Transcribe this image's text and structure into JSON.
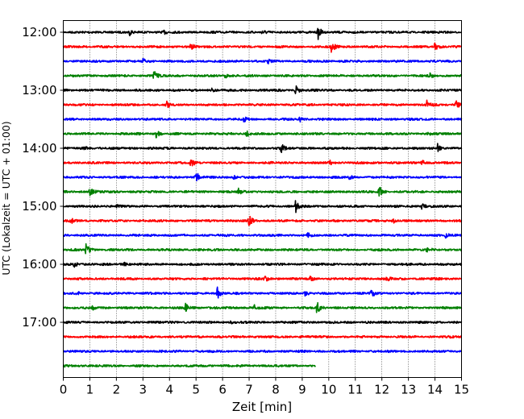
{
  "chart_data": {
    "type": "line",
    "subtype": "helicorder-seismogram",
    "xlabel": "Zeit  [min]",
    "ylabel": "UTC (Lokalzeit = UTC + 01:00)",
    "xlim": [
      0,
      15
    ],
    "x_ticks": [
      "0",
      "1",
      "2",
      "3",
      "4",
      "5",
      "6",
      "7",
      "8",
      "9",
      "10",
      "11",
      "12",
      "13",
      "14",
      "15"
    ],
    "y_ticks": [
      "12:00",
      "13:00",
      "14:00",
      "15:00",
      "16:00",
      "17:00"
    ],
    "grid": "vertical-dotted",
    "minutes_per_trace": 15,
    "trace_colors": [
      "#000000",
      "#ff0000",
      "#0000ff",
      "#008000"
    ],
    "traces": [
      {
        "start": "12:00",
        "end_min": 15,
        "color": "#000000",
        "events": [
          [
            2.5,
            0.35
          ],
          [
            9.6,
            0.9
          ],
          [
            7.5,
            0.3
          ],
          [
            3.8,
            0.25
          ]
        ]
      },
      {
        "start": "12:15",
        "end_min": 15,
        "color": "#ff0000",
        "events": [
          [
            10.1,
            1.0
          ],
          [
            14.0,
            0.9
          ],
          [
            4.8,
            0.4
          ]
        ]
      },
      {
        "start": "12:30",
        "end_min": 15,
        "color": "#0000ff",
        "events": [
          [
            3.0,
            0.35
          ],
          [
            7.7,
            0.3
          ]
        ]
      },
      {
        "start": "12:45",
        "end_min": 15,
        "color": "#008000",
        "events": [
          [
            3.4,
            0.75
          ],
          [
            6.1,
            0.3
          ],
          [
            13.8,
            0.3
          ]
        ]
      },
      {
        "start": "13:00",
        "end_min": 15,
        "color": "#000000",
        "events": [
          [
            8.75,
            0.85
          ],
          [
            5.6,
            0.3
          ]
        ]
      },
      {
        "start": "13:15",
        "end_min": 15,
        "color": "#ff0000",
        "events": [
          [
            13.7,
            0.8
          ],
          [
            14.8,
            1.1
          ],
          [
            3.9,
            0.4
          ]
        ]
      },
      {
        "start": "13:30",
        "end_min": 15,
        "color": "#0000ff",
        "events": [
          [
            6.8,
            0.4
          ],
          [
            8.9,
            0.35
          ]
        ]
      },
      {
        "start": "13:45",
        "end_min": 15,
        "color": "#008000",
        "events": [
          [
            3.5,
            0.6
          ],
          [
            6.9,
            0.45
          ],
          [
            13.7,
            0.3
          ]
        ]
      },
      {
        "start": "14:00",
        "end_min": 15,
        "color": "#000000",
        "events": [
          [
            8.2,
            0.8
          ],
          [
            14.1,
            0.55
          ],
          [
            0.8,
            0.3
          ]
        ]
      },
      {
        "start": "14:15",
        "end_min": 15,
        "color": "#ff0000",
        "events": [
          [
            4.8,
            0.7
          ],
          [
            10.0,
            0.45
          ],
          [
            13.5,
            0.4
          ]
        ]
      },
      {
        "start": "14:30",
        "end_min": 15,
        "color": "#0000ff",
        "events": [
          [
            5.0,
            0.85
          ],
          [
            10.7,
            0.4
          ],
          [
            6.4,
            0.3
          ]
        ]
      },
      {
        "start": "14:45",
        "end_min": 15,
        "color": "#008000",
        "events": [
          [
            1.0,
            0.7
          ],
          [
            11.9,
            0.8
          ],
          [
            6.6,
            0.35
          ]
        ]
      },
      {
        "start": "15:00",
        "end_min": 15,
        "color": "#000000",
        "events": [
          [
            8.75,
            0.85
          ],
          [
            13.5,
            0.4
          ],
          [
            2.0,
            0.3
          ]
        ]
      },
      {
        "start": "15:15",
        "end_min": 15,
        "color": "#ff0000",
        "events": [
          [
            7.0,
            0.85
          ],
          [
            0.3,
            0.4
          ],
          [
            12.4,
            0.4
          ]
        ]
      },
      {
        "start": "15:30",
        "end_min": 15,
        "color": "#0000ff",
        "events": [
          [
            9.2,
            0.3
          ],
          [
            14.4,
            0.35
          ]
        ]
      },
      {
        "start": "15:45",
        "end_min": 15,
        "color": "#008000",
        "events": [
          [
            0.85,
            0.9
          ],
          [
            13.7,
            0.3
          ]
        ]
      },
      {
        "start": "16:00",
        "end_min": 15,
        "color": "#000000",
        "events": [
          [
            0.4,
            0.45
          ],
          [
            2.3,
            0.3
          ]
        ]
      },
      {
        "start": "16:15",
        "end_min": 15,
        "color": "#ff0000",
        "events": [
          [
            7.6,
            0.5
          ],
          [
            12.2,
            0.3
          ],
          [
            9.3,
            0.3
          ]
        ]
      },
      {
        "start": "16:30",
        "end_min": 15,
        "color": "#0000ff",
        "events": [
          [
            5.8,
            0.85
          ],
          [
            11.6,
            0.7
          ],
          [
            9.1,
            0.4
          ],
          [
            0.5,
            0.3
          ]
        ]
      },
      {
        "start": "16:45",
        "end_min": 15,
        "color": "#008000",
        "events": [
          [
            9.55,
            0.85
          ],
          [
            4.6,
            0.6
          ],
          [
            7.2,
            0.4
          ],
          [
            1.1,
            0.3
          ]
        ]
      },
      {
        "start": "17:00",
        "end_min": 15,
        "color": "#000000",
        "events": [
          [
            6.3,
            0.25
          ]
        ]
      },
      {
        "start": "17:15",
        "end_min": 15,
        "color": "#ff0000",
        "events": [
          [
            8.9,
            0.1
          ]
        ]
      },
      {
        "start": "17:30",
        "end_min": 15,
        "color": "#0000ff",
        "events": []
      },
      {
        "start": "17:45",
        "end_min": 9.5,
        "color": "#008000",
        "events": []
      }
    ]
  }
}
